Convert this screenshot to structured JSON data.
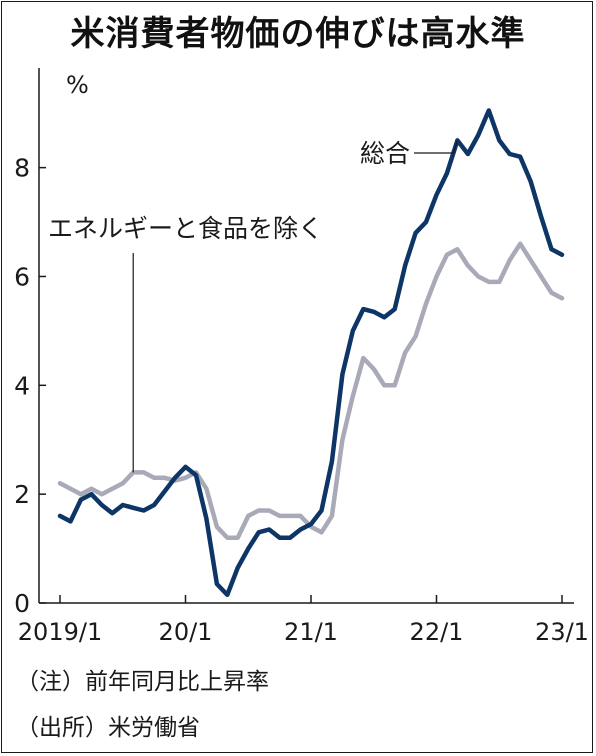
{
  "chart_data": {
    "type": "line",
    "title": "米消費者物価の伸びは高水準",
    "ylabel": "%",
    "ylim": [
      0,
      9.5
    ],
    "yticks": [
      0,
      2,
      4,
      6,
      8
    ],
    "xlim": [
      "2019-01",
      "2023-01"
    ],
    "xticks": [
      {
        "date": "2019-01",
        "label": "2019/1"
      },
      {
        "date": "2020-01",
        "label": "20/1"
      },
      {
        "date": "2021-01",
        "label": "21/1"
      },
      {
        "date": "2022-01",
        "label": "22/1"
      },
      {
        "date": "2023-01",
        "label": "23/1"
      }
    ],
    "grid": false,
    "series": [
      {
        "name": "総合",
        "color": "#0d3566",
        "points": [
          [
            "2019-01",
            1.6
          ],
          [
            "2019-02",
            1.5
          ],
          [
            "2019-03",
            1.9
          ],
          [
            "2019-04",
            2.0
          ],
          [
            "2019-05",
            1.8
          ],
          [
            "2019-06",
            1.65
          ],
          [
            "2019-07",
            1.8
          ],
          [
            "2019-08",
            1.75
          ],
          [
            "2019-09",
            1.7
          ],
          [
            "2019-10",
            1.8
          ],
          [
            "2019-11",
            2.05
          ],
          [
            "2019-12",
            2.3
          ],
          [
            "2020-01",
            2.5
          ],
          [
            "2020-02",
            2.35
          ],
          [
            "2020-03",
            1.55
          ],
          [
            "2020-04",
            0.35
          ],
          [
            "2020-05",
            0.15
          ],
          [
            "2020-06",
            0.65
          ],
          [
            "2020-07",
            1.0
          ],
          [
            "2020-08",
            1.3
          ],
          [
            "2020-09",
            1.35
          ],
          [
            "2020-10",
            1.2
          ],
          [
            "2020-11",
            1.2
          ],
          [
            "2020-12",
            1.35
          ],
          [
            "2021-01",
            1.45
          ],
          [
            "2021-02",
            1.7
          ],
          [
            "2021-03",
            2.6
          ],
          [
            "2021-04",
            4.2
          ],
          [
            "2021-05",
            5.0
          ],
          [
            "2021-06",
            5.4
          ],
          [
            "2021-07",
            5.35
          ],
          [
            "2021-08",
            5.25
          ],
          [
            "2021-09",
            5.4
          ],
          [
            "2021-10",
            6.2
          ],
          [
            "2021-11",
            6.8
          ],
          [
            "2021-12",
            7.0
          ],
          [
            "2022-01",
            7.5
          ],
          [
            "2022-02",
            7.9
          ],
          [
            "2022-03",
            8.5
          ],
          [
            "2022-04",
            8.25
          ],
          [
            "2022-05",
            8.6
          ],
          [
            "2022-06",
            9.05
          ],
          [
            "2022-07",
            8.5
          ],
          [
            "2022-08",
            8.25
          ],
          [
            "2022-09",
            8.2
          ],
          [
            "2022-10",
            7.75
          ],
          [
            "2022-11",
            7.1
          ],
          [
            "2022-12",
            6.5
          ],
          [
            "2023-01",
            6.4
          ]
        ]
      },
      {
        "name": "エネルギーと食品を除く",
        "color": "#a9aab8",
        "points": [
          [
            "2019-01",
            2.2
          ],
          [
            "2019-02",
            2.1
          ],
          [
            "2019-03",
            2.0
          ],
          [
            "2019-04",
            2.1
          ],
          [
            "2019-05",
            2.0
          ],
          [
            "2019-06",
            2.1
          ],
          [
            "2019-07",
            2.2
          ],
          [
            "2019-08",
            2.4
          ],
          [
            "2019-09",
            2.4
          ],
          [
            "2019-10",
            2.3
          ],
          [
            "2019-11",
            2.3
          ],
          [
            "2019-12",
            2.25
          ],
          [
            "2020-01",
            2.3
          ],
          [
            "2020-02",
            2.4
          ],
          [
            "2020-03",
            2.1
          ],
          [
            "2020-04",
            1.4
          ],
          [
            "2020-05",
            1.2
          ],
          [
            "2020-06",
            1.2
          ],
          [
            "2020-07",
            1.6
          ],
          [
            "2020-08",
            1.7
          ],
          [
            "2020-09",
            1.7
          ],
          [
            "2020-10",
            1.6
          ],
          [
            "2020-11",
            1.6
          ],
          [
            "2020-12",
            1.6
          ],
          [
            "2021-01",
            1.4
          ],
          [
            "2021-02",
            1.3
          ],
          [
            "2021-03",
            1.6
          ],
          [
            "2021-04",
            3.0
          ],
          [
            "2021-05",
            3.8
          ],
          [
            "2021-06",
            4.5
          ],
          [
            "2021-07",
            4.3
          ],
          [
            "2021-08",
            4.0
          ],
          [
            "2021-09",
            4.0
          ],
          [
            "2021-10",
            4.6
          ],
          [
            "2021-11",
            4.9
          ],
          [
            "2021-12",
            5.5
          ],
          [
            "2022-01",
            6.0
          ],
          [
            "2022-02",
            6.4
          ],
          [
            "2022-03",
            6.5
          ],
          [
            "2022-04",
            6.2
          ],
          [
            "2022-05",
            6.0
          ],
          [
            "2022-06",
            5.9
          ],
          [
            "2022-07",
            5.9
          ],
          [
            "2022-08",
            6.3
          ],
          [
            "2022-09",
            6.6
          ],
          [
            "2022-10",
            6.3
          ],
          [
            "2022-11",
            6.0
          ],
          [
            "2022-12",
            5.7
          ],
          [
            "2023-01",
            5.6
          ]
        ]
      }
    ],
    "annotations": [
      {
        "text": "総合",
        "series": 0,
        "at": "2022-03"
      },
      {
        "text": "エネルギーと食品を除く",
        "series": 1,
        "at": "2019-08"
      }
    ]
  },
  "notes": {
    "note1": "（注）前年同月比上昇率",
    "note2": "（出所）米労働省"
  }
}
